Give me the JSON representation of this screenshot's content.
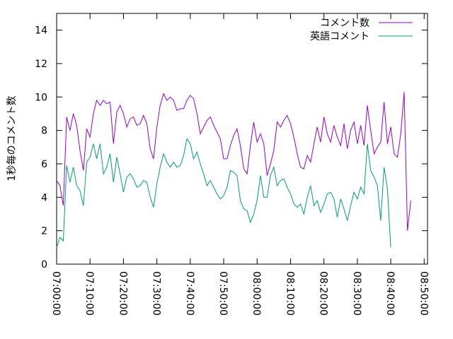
{
  "chart_data": {
    "type": "line",
    "title": "",
    "xlabel": "",
    "ylabel": "1秒毎のコメント数",
    "ylim": [
      0,
      15
    ],
    "yticks": [
      0,
      2,
      4,
      6,
      8,
      10,
      12,
      14
    ],
    "xlim": [
      "07:00:00",
      "08:51:00"
    ],
    "xticks": [
      "07:00:00",
      "07:10:00",
      "07:20:00",
      "07:30:00",
      "07:40:00",
      "07:50:00",
      "08:00:00",
      "08:10:00",
      "08:20:00",
      "08:30:00",
      "08:40:00",
      "08:50:00"
    ],
    "grid": false,
    "legend_position": "top-right",
    "series": [
      {
        "name": "コメント数",
        "color": "#9400d3",
        "points": [
          [
            "07:00:00",
            5.0
          ],
          [
            "07:01:00",
            4.7
          ],
          [
            "07:02:00",
            3.5
          ],
          [
            "07:03:00",
            8.8
          ],
          [
            "07:04:00",
            8.0
          ],
          [
            "07:05:00",
            9.0
          ],
          [
            "07:06:00",
            8.3
          ],
          [
            "07:07:00",
            6.8
          ],
          [
            "07:08:00",
            5.6
          ],
          [
            "07:09:00",
            8.1
          ],
          [
            "07:10:00",
            7.6
          ],
          [
            "07:11:00",
            9.0
          ],
          [
            "07:12:00",
            9.8
          ],
          [
            "07:13:00",
            9.5
          ],
          [
            "07:14:00",
            9.8
          ],
          [
            "07:15:00",
            9.6
          ],
          [
            "07:16:00",
            9.7
          ],
          [
            "07:17:00",
            7.2
          ],
          [
            "07:18:00",
            9.1
          ],
          [
            "07:19:00",
            9.5
          ],
          [
            "07:20:00",
            9.0
          ],
          [
            "07:21:00",
            8.2
          ],
          [
            "07:22:00",
            8.7
          ],
          [
            "07:23:00",
            8.8
          ],
          [
            "07:24:00",
            8.3
          ],
          [
            "07:25:00",
            8.4
          ],
          [
            "07:26:00",
            8.9
          ],
          [
            "07:27:00",
            8.4
          ],
          [
            "07:28:00",
            6.9
          ],
          [
            "07:29:00",
            6.3
          ],
          [
            "07:30:00",
            8.2
          ],
          [
            "07:31:00",
            9.5
          ],
          [
            "07:32:00",
            10.2
          ],
          [
            "07:33:00",
            9.8
          ],
          [
            "07:34:00",
            10.0
          ],
          [
            "07:35:00",
            9.8
          ],
          [
            "07:36:00",
            9.2
          ],
          [
            "07:37:00",
            9.3
          ],
          [
            "07:38:00",
            9.3
          ],
          [
            "07:39:00",
            9.8
          ],
          [
            "07:40:00",
            10.1
          ],
          [
            "07:41:00",
            9.9
          ],
          [
            "07:42:00",
            9.0
          ],
          [
            "07:43:00",
            7.8
          ],
          [
            "07:44:00",
            8.2
          ],
          [
            "07:45:00",
            8.6
          ],
          [
            "07:46:00",
            8.8
          ],
          [
            "07:47:00",
            8.3
          ],
          [
            "07:48:00",
            7.9
          ],
          [
            "07:49:00",
            7.5
          ],
          [
            "07:50:00",
            6.3
          ],
          [
            "07:51:00",
            6.3
          ],
          [
            "07:52:00",
            7.1
          ],
          [
            "07:53:00",
            7.7
          ],
          [
            "07:54:00",
            8.1
          ],
          [
            "07:55:00",
            7.1
          ],
          [
            "07:56:00",
            5.7
          ],
          [
            "07:57:00",
            5.4
          ],
          [
            "07:58:00",
            7.1
          ],
          [
            "07:59:00",
            8.5
          ],
          [
            "08:00:00",
            7.3
          ],
          [
            "08:01:00",
            7.8
          ],
          [
            "08:02:00",
            7.2
          ],
          [
            "08:03:00",
            5.3
          ],
          [
            "08:04:00",
            6.0
          ],
          [
            "08:05:00",
            6.8
          ],
          [
            "08:06:00",
            8.5
          ],
          [
            "08:07:00",
            8.2
          ],
          [
            "08:08:00",
            8.6
          ],
          [
            "08:09:00",
            8.9
          ],
          [
            "08:10:00",
            8.4
          ],
          [
            "08:11:00",
            7.6
          ],
          [
            "08:12:00",
            6.6
          ],
          [
            "08:13:00",
            5.8
          ],
          [
            "08:14:00",
            5.7
          ],
          [
            "08:15:00",
            6.5
          ],
          [
            "08:16:00",
            6.1
          ],
          [
            "08:17:00",
            7.2
          ],
          [
            "08:18:00",
            8.2
          ],
          [
            "08:19:00",
            7.3
          ],
          [
            "08:20:00",
            8.8
          ],
          [
            "08:21:00",
            7.8
          ],
          [
            "08:22:00",
            7.3
          ],
          [
            "08:23:00",
            8.3
          ],
          [
            "08:24:00",
            7.6
          ],
          [
            "08:25:00",
            7.1
          ],
          [
            "08:26:00",
            8.4
          ],
          [
            "08:27:00",
            6.9
          ],
          [
            "08:28:00",
            8.0
          ],
          [
            "08:29:00",
            8.5
          ],
          [
            "08:30:00",
            7.2
          ],
          [
            "08:31:00",
            8.3
          ],
          [
            "08:32:00",
            7.1
          ],
          [
            "08:33:00",
            9.5
          ],
          [
            "08:34:00",
            8.0
          ],
          [
            "08:35:00",
            6.6
          ],
          [
            "08:36:00",
            7.0
          ],
          [
            "08:37:00",
            7.3
          ],
          [
            "08:38:00",
            9.7
          ],
          [
            "08:39:00",
            7.2
          ],
          [
            "08:40:00",
            8.2
          ],
          [
            "08:41:00",
            6.6
          ],
          [
            "08:42:00",
            6.4
          ],
          [
            "08:43:00",
            7.8
          ],
          [
            "08:44:00",
            10.3
          ],
          [
            "08:45:00",
            2.0
          ],
          [
            "08:46:00",
            3.8
          ]
        ]
      },
      {
        "name": "英語コメント",
        "color": "#009e73",
        "points": [
          [
            "07:00:00",
            1.0
          ],
          [
            "07:01:00",
            1.6
          ],
          [
            "07:02:00",
            1.4
          ],
          [
            "07:03:00",
            5.9
          ],
          [
            "07:04:00",
            4.9
          ],
          [
            "07:05:00",
            5.8
          ],
          [
            "07:06:00",
            4.7
          ],
          [
            "07:07:00",
            4.4
          ],
          [
            "07:08:00",
            3.5
          ],
          [
            "07:09:00",
            6.1
          ],
          [
            "07:10:00",
            6.4
          ],
          [
            "07:11:00",
            7.2
          ],
          [
            "07:12:00",
            6.3
          ],
          [
            "07:13:00",
            7.2
          ],
          [
            "07:14:00",
            5.4
          ],
          [
            "07:15:00",
            5.8
          ],
          [
            "07:16:00",
            6.6
          ],
          [
            "07:17:00",
            4.9
          ],
          [
            "07:18:00",
            6.4
          ],
          [
            "07:19:00",
            5.4
          ],
          [
            "07:20:00",
            4.3
          ],
          [
            "07:21:00",
            5.2
          ],
          [
            "07:22:00",
            5.4
          ],
          [
            "07:23:00",
            5.1
          ],
          [
            "07:24:00",
            4.6
          ],
          [
            "07:25:00",
            4.7
          ],
          [
            "07:26:00",
            5.0
          ],
          [
            "07:27:00",
            4.9
          ],
          [
            "07:28:00",
            4.0
          ],
          [
            "07:29:00",
            3.4
          ],
          [
            "07:30:00",
            4.8
          ],
          [
            "07:31:00",
            5.8
          ],
          [
            "07:32:00",
            6.6
          ],
          [
            "07:33:00",
            6.1
          ],
          [
            "07:34:00",
            5.8
          ],
          [
            "07:35:00",
            6.1
          ],
          [
            "07:36:00",
            5.8
          ],
          [
            "07:37:00",
            5.9
          ],
          [
            "07:38:00",
            6.5
          ],
          [
            "07:39:00",
            7.5
          ],
          [
            "07:40:00",
            7.2
          ],
          [
            "07:41:00",
            6.3
          ],
          [
            "07:42:00",
            6.7
          ],
          [
            "07:43:00",
            6.0
          ],
          [
            "07:44:00",
            5.4
          ],
          [
            "07:45:00",
            4.7
          ],
          [
            "07:46:00",
            5.0
          ],
          [
            "07:47:00",
            4.6
          ],
          [
            "07:48:00",
            4.2
          ],
          [
            "07:49:00",
            3.9
          ],
          [
            "07:50:00",
            4.1
          ],
          [
            "07:51:00",
            4.6
          ],
          [
            "07:52:00",
            5.6
          ],
          [
            "07:53:00",
            5.5
          ],
          [
            "07:54:00",
            5.3
          ],
          [
            "07:55:00",
            3.8
          ],
          [
            "07:56:00",
            3.3
          ],
          [
            "07:57:00",
            3.2
          ],
          [
            "07:58:00",
            2.5
          ],
          [
            "07:59:00",
            3.0
          ],
          [
            "08:00:00",
            3.8
          ],
          [
            "08:01:00",
            5.3
          ],
          [
            "08:02:00",
            4.0
          ],
          [
            "08:03:00",
            4.0
          ],
          [
            "08:04:00",
            5.3
          ],
          [
            "08:05:00",
            5.8
          ],
          [
            "08:06:00",
            4.7
          ],
          [
            "08:07:00",
            5.0
          ],
          [
            "08:08:00",
            5.1
          ],
          [
            "08:09:00",
            4.6
          ],
          [
            "08:10:00",
            4.2
          ],
          [
            "08:11:00",
            3.6
          ],
          [
            "08:12:00",
            3.4
          ],
          [
            "08:13:00",
            3.6
          ],
          [
            "08:14:00",
            3.0
          ],
          [
            "08:15:00",
            4.0
          ],
          [
            "08:16:00",
            4.7
          ],
          [
            "08:17:00",
            3.5
          ],
          [
            "08:18:00",
            3.8
          ],
          [
            "08:19:00",
            3.1
          ],
          [
            "08:20:00",
            3.6
          ],
          [
            "08:21:00",
            4.2
          ],
          [
            "08:22:00",
            4.3
          ],
          [
            "08:23:00",
            3.9
          ],
          [
            "08:24:00",
            2.8
          ],
          [
            "08:25:00",
            3.9
          ],
          [
            "08:26:00",
            3.3
          ],
          [
            "08:27:00",
            2.6
          ],
          [
            "08:28:00",
            3.5
          ],
          [
            "08:29:00",
            4.3
          ],
          [
            "08:30:00",
            3.9
          ],
          [
            "08:31:00",
            4.6
          ],
          [
            "08:32:00",
            4.2
          ],
          [
            "08:33:00",
            7.2
          ],
          [
            "08:34:00",
            5.6
          ],
          [
            "08:35:00",
            5.2
          ],
          [
            "08:36:00",
            4.7
          ],
          [
            "08:37:00",
            2.6
          ],
          [
            "08:38:00",
            5.8
          ],
          [
            "08:39:00",
            4.5
          ],
          [
            "08:40:00",
            1.0
          ]
        ]
      }
    ]
  }
}
